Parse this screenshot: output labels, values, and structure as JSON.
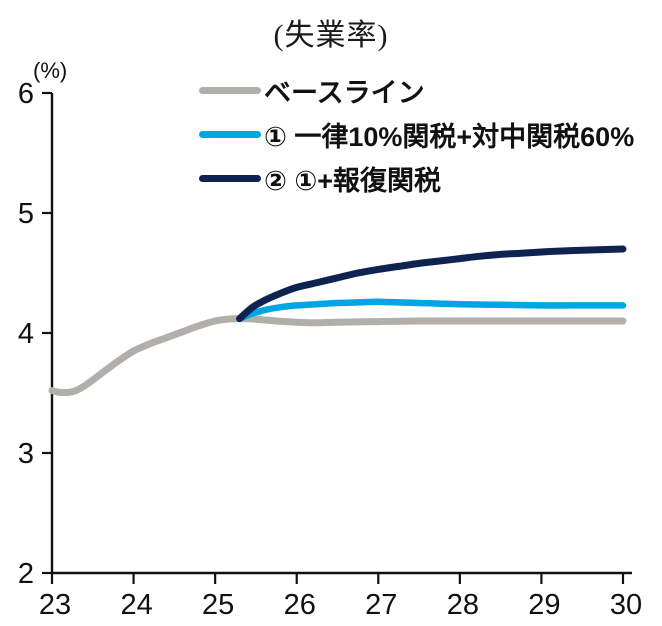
{
  "title": "(失業率)",
  "y_unit_label": "(%)",
  "legend": [
    {
      "label": "ベースライン",
      "color": "#b1aeab"
    },
    {
      "label": "① 一律10%関税+対中関税60%",
      "color": "#00a5e3"
    },
    {
      "label": "② ①+報復関税",
      "color": "#0f2350"
    }
  ],
  "chart_data": {
    "type": "line",
    "title": "(失業率)",
    "xlabel": "",
    "ylabel": "(%)",
    "xlim": [
      23,
      30
    ],
    "ylim": [
      2,
      6
    ],
    "xticks": [
      23,
      24,
      25,
      26,
      27,
      28,
      29,
      30
    ],
    "yticks": [
      2,
      3,
      4,
      5,
      6
    ],
    "grid": false,
    "legend_position": "top-inside",
    "axis_color": "#111111",
    "series": [
      {
        "name": "ベースライン",
        "color": "#b1aeab",
        "points": [
          [
            23.0,
            3.52
          ],
          [
            23.1,
            3.505
          ],
          [
            23.25,
            3.51
          ],
          [
            23.4,
            3.56
          ],
          [
            23.6,
            3.66
          ],
          [
            23.8,
            3.76
          ],
          [
            24.0,
            3.85
          ],
          [
            24.2,
            3.91
          ],
          [
            24.4,
            3.96
          ],
          [
            24.6,
            4.01
          ],
          [
            24.8,
            4.06
          ],
          [
            25.0,
            4.1
          ],
          [
            25.15,
            4.115
          ],
          [
            25.3,
            4.12
          ],
          [
            25.5,
            4.115
          ],
          [
            25.75,
            4.1
          ],
          [
            26.0,
            4.09
          ],
          [
            26.25,
            4.085
          ],
          [
            26.5,
            4.09
          ],
          [
            27.0,
            4.095
          ],
          [
            27.5,
            4.1
          ],
          [
            28.0,
            4.1
          ],
          [
            28.5,
            4.1
          ],
          [
            29.0,
            4.1
          ],
          [
            29.5,
            4.1
          ],
          [
            30.0,
            4.1
          ]
        ]
      },
      {
        "name": "① 一律10%関税+対中関税60%",
        "color": "#00a5e3",
        "points": [
          [
            25.3,
            4.12
          ],
          [
            25.45,
            4.16
          ],
          [
            25.6,
            4.19
          ],
          [
            25.8,
            4.215
          ],
          [
            26.0,
            4.23
          ],
          [
            26.25,
            4.24
          ],
          [
            26.5,
            4.25
          ],
          [
            26.75,
            4.255
          ],
          [
            27.0,
            4.26
          ],
          [
            27.25,
            4.255
          ],
          [
            27.5,
            4.25
          ],
          [
            27.75,
            4.245
          ],
          [
            28.0,
            4.24
          ],
          [
            28.5,
            4.235
          ],
          [
            29.0,
            4.23
          ],
          [
            29.5,
            4.23
          ],
          [
            30.0,
            4.23
          ]
        ]
      },
      {
        "name": "② ①+報復関税",
        "color": "#0f2350",
        "points": [
          [
            25.3,
            4.12
          ],
          [
            25.45,
            4.21
          ],
          [
            25.6,
            4.27
          ],
          [
            25.8,
            4.33
          ],
          [
            26.0,
            4.38
          ],
          [
            26.25,
            4.42
          ],
          [
            26.5,
            4.46
          ],
          [
            26.75,
            4.5
          ],
          [
            27.0,
            4.53
          ],
          [
            27.25,
            4.555
          ],
          [
            27.5,
            4.58
          ],
          [
            27.75,
            4.6
          ],
          [
            28.0,
            4.62
          ],
          [
            28.25,
            4.64
          ],
          [
            28.5,
            4.655
          ],
          [
            28.75,
            4.665
          ],
          [
            29.0,
            4.675
          ],
          [
            29.25,
            4.683
          ],
          [
            29.5,
            4.69
          ],
          [
            29.75,
            4.695
          ],
          [
            30.0,
            4.7
          ]
        ]
      }
    ]
  }
}
